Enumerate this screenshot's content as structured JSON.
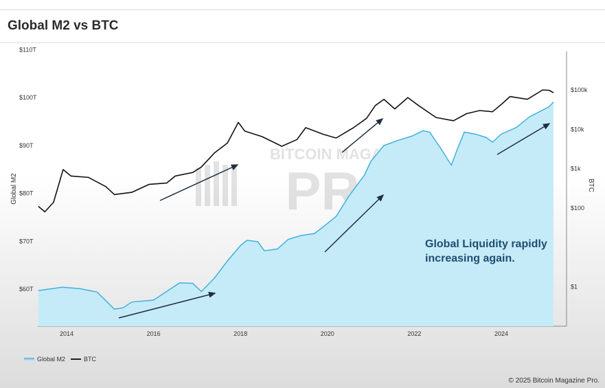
{
  "header": {
    "title": "Global M2 vs BTC"
  },
  "annotation": "Global Liquidity rapidly increasing again.",
  "watermark": {
    "line1": "BITCOIN MAGAZINE",
    "line2": "PRO"
  },
  "legend": {
    "m2": "Global M2",
    "btc": "BTC"
  },
  "copyright": "© 2025 Bitcoin Magazine Pro.",
  "colors": {
    "m2_line": "#3fb0dc",
    "m2_fill": "#c6ebf8",
    "btc": "#111111",
    "annotation": "#1d4e72"
  },
  "chart_data": {
    "type": "line",
    "title": "Global M2 vs BTC",
    "xlabel": "",
    "ylabel_left": "Global M2",
    "ylabel_right": "BTC",
    "xlim": [
      2013.35,
      2025.2
    ],
    "ylim_left": [
      52,
      110
    ],
    "ylim_right_log": [
      0.2,
      500000
    ],
    "x_ticks": [
      "2014",
      "2016",
      "2018",
      "2020",
      "2022",
      "2024"
    ],
    "x_tick_values": [
      2014,
      2016,
      2018,
      2020,
      2022,
      2024
    ],
    "y_left_ticks": [
      "$60T",
      "$70T",
      "$80T",
      "$90T",
      "$100T",
      "$110T"
    ],
    "y_left_tick_values": [
      60,
      70,
      80,
      90,
      100,
      110
    ],
    "y_right_ticks": [
      "$1",
      "$100",
      "$1k",
      "$10k",
      "$100k"
    ],
    "y_right_tick_values": [
      1,
      100,
      1000,
      10000,
      100000
    ],
    "grid": false,
    "legend_position": "bottom-left",
    "series": [
      {
        "name": "Global M2",
        "axis": "left",
        "unit": "trillion USD",
        "points": [
          [
            2013.35,
            59.7
          ],
          [
            2013.9,
            60.4
          ],
          [
            2014.3,
            60.1
          ],
          [
            2014.7,
            59.4
          ],
          [
            2015.1,
            55.8
          ],
          [
            2015.3,
            56.1
          ],
          [
            2015.5,
            57.3
          ],
          [
            2016.0,
            57.7
          ],
          [
            2016.3,
            59.5
          ],
          [
            2016.6,
            61.3
          ],
          [
            2016.9,
            61.2
          ],
          [
            2017.1,
            59.5
          ],
          [
            2017.4,
            62.3
          ],
          [
            2017.7,
            65.9
          ],
          [
            2018.0,
            69.1
          ],
          [
            2018.15,
            70.2
          ],
          [
            2018.4,
            69.9
          ],
          [
            2018.55,
            68.0
          ],
          [
            2018.85,
            68.4
          ],
          [
            2019.1,
            70.4
          ],
          [
            2019.4,
            71.2
          ],
          [
            2019.7,
            71.6
          ],
          [
            2019.9,
            73.0
          ],
          [
            2020.2,
            75.2
          ],
          [
            2020.5,
            79.5
          ],
          [
            2020.85,
            83.8
          ],
          [
            2021.0,
            86.7
          ],
          [
            2021.3,
            90.0
          ],
          [
            2021.6,
            91.0
          ],
          [
            2021.95,
            92.0
          ],
          [
            2022.2,
            93.1
          ],
          [
            2022.35,
            92.8
          ],
          [
            2022.6,
            89.5
          ],
          [
            2022.85,
            85.9
          ],
          [
            2023.0,
            89.5
          ],
          [
            2023.15,
            92.8
          ],
          [
            2023.4,
            92.4
          ],
          [
            2023.65,
            91.7
          ],
          [
            2023.8,
            90.7
          ],
          [
            2024.0,
            92.4
          ],
          [
            2024.35,
            93.8
          ],
          [
            2024.65,
            96.0
          ],
          [
            2024.95,
            97.4
          ],
          [
            2025.1,
            98.1
          ],
          [
            2025.2,
            99.1
          ]
        ]
      },
      {
        "name": "BTC",
        "axis": "right",
        "unit": "USD",
        "points": [
          [
            2013.35,
            110
          ],
          [
            2013.5,
            80
          ],
          [
            2013.7,
            140
          ],
          [
            2013.92,
            950
          ],
          [
            2014.1,
            650
          ],
          [
            2014.5,
            600
          ],
          [
            2014.9,
            350
          ],
          [
            2015.1,
            220
          ],
          [
            2015.5,
            250
          ],
          [
            2015.9,
            400
          ],
          [
            2016.3,
            430
          ],
          [
            2016.5,
            650
          ],
          [
            2016.9,
            800
          ],
          [
            2017.1,
            1100
          ],
          [
            2017.4,
            2500
          ],
          [
            2017.7,
            4500
          ],
          [
            2017.95,
            15000
          ],
          [
            2018.1,
            9000
          ],
          [
            2018.5,
            6500
          ],
          [
            2018.95,
            3700
          ],
          [
            2019.3,
            5500
          ],
          [
            2019.5,
            11000
          ],
          [
            2019.9,
            7500
          ],
          [
            2020.2,
            6000
          ],
          [
            2020.6,
            11000
          ],
          [
            2020.9,
            19000
          ],
          [
            2021.1,
            40000
          ],
          [
            2021.3,
            58000
          ],
          [
            2021.55,
            33000
          ],
          [
            2021.85,
            64000
          ],
          [
            2022.1,
            40000
          ],
          [
            2022.5,
            20000
          ],
          [
            2022.9,
            16500
          ],
          [
            2023.2,
            25000
          ],
          [
            2023.5,
            30000
          ],
          [
            2023.8,
            28000
          ],
          [
            2024.0,
            43000
          ],
          [
            2024.2,
            68000
          ],
          [
            2024.6,
            58000
          ],
          [
            2024.95,
            100000
          ],
          [
            2025.1,
            98000
          ],
          [
            2025.2,
            85000
          ]
        ]
      }
    ]
  }
}
